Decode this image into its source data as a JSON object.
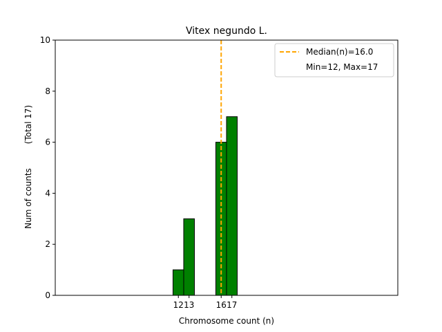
{
  "chart_data": {
    "type": "bar",
    "title": "Vitex negundo L.",
    "xlabel": "Chromosome count (n)",
    "ylabel": "Num of counts",
    "ylabel_secondary": "(Total 17)",
    "x": [
      12,
      13,
      16,
      17
    ],
    "x_tick_labels": [
      "12",
      "13",
      "16",
      "17"
    ],
    "values": [
      1,
      3,
      6,
      7
    ],
    "bar_color": "#008000",
    "bar_edge_color": "#000000",
    "ylim": [
      0,
      10
    ],
    "y_ticks": [
      0,
      2,
      4,
      6,
      8,
      10
    ],
    "xlim": [
      0.5,
      32.5
    ],
    "baseline_extent": [
      0.5,
      20.5
    ],
    "median": 16.0,
    "median_color": "#FFA500",
    "legend": {
      "placement": "top-right",
      "entries": [
        "Median(n)=16.0",
        "Min=12, Max=17"
      ]
    },
    "grid": false
  }
}
